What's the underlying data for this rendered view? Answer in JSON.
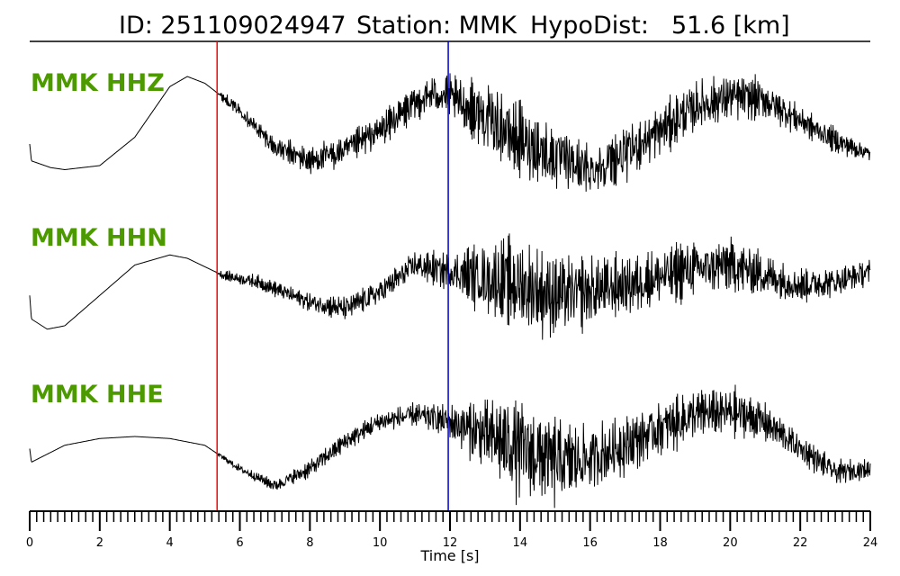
{
  "chart_data": {
    "type": "line",
    "title": {
      "id_text": "ID: 251109024947",
      "station_text": "Station: MMK",
      "hypodist_text": "HypoDist:",
      "hypodist_value": "51.6 [km]"
    },
    "xlabel": "Time [s]",
    "xlim": [
      0,
      24
    ],
    "x_ticks": [
      "0",
      "2",
      "4",
      "6",
      "8",
      "10",
      "12",
      "14",
      "16",
      "18",
      "20",
      "22",
      "24"
    ],
    "x_minor_step": 0.2,
    "grid": false,
    "p_pick_time": 5.35,
    "s_pick_time": 11.95,
    "colors": {
      "trace": "#000000",
      "p_pick": "#ff0000",
      "s_pick": "#0000cc",
      "label": "#4c9900"
    },
    "series": [
      {
        "name": "MMK HHZ",
        "envelope": [
          [
            0.0,
            -0.4
          ],
          [
            0.05,
            -0.65
          ],
          [
            0.6,
            -0.75
          ],
          [
            1.0,
            -0.78
          ],
          [
            2.0,
            -0.72
          ],
          [
            3.0,
            -0.3
          ],
          [
            4.0,
            0.45
          ],
          [
            4.5,
            0.6
          ],
          [
            5.0,
            0.5
          ],
          [
            6.0,
            0.1
          ],
          [
            7.0,
            -0.45
          ],
          [
            8.0,
            -0.65
          ],
          [
            9.0,
            -0.5
          ],
          [
            10.0,
            -0.2
          ],
          [
            11.0,
            0.2
          ],
          [
            11.5,
            0.35
          ],
          [
            12.0,
            0.3
          ],
          [
            13.0,
            0.0
          ],
          [
            14.0,
            -0.35
          ],
          [
            15.0,
            -0.6
          ],
          [
            16.0,
            -0.8
          ],
          [
            17.0,
            -0.55
          ],
          [
            18.0,
            -0.2
          ],
          [
            19.0,
            0.15
          ],
          [
            20.0,
            0.3
          ],
          [
            21.0,
            0.25
          ],
          [
            22.0,
            -0.05
          ],
          [
            23.0,
            -0.35
          ],
          [
            24.0,
            -0.55
          ]
        ],
        "noise": [
          [
            0,
            0.0
          ],
          [
            5.3,
            0.0
          ],
          [
            5.5,
            0.08
          ],
          [
            8.0,
            0.25
          ],
          [
            11.0,
            0.3
          ],
          [
            12.0,
            0.35
          ],
          [
            13.0,
            0.55
          ],
          [
            14.0,
            0.6
          ],
          [
            15.0,
            0.55
          ],
          [
            16.0,
            0.45
          ],
          [
            20.0,
            0.4
          ],
          [
            22.0,
            0.25
          ],
          [
            24.0,
            0.15
          ]
        ]
      },
      {
        "name": "MMK HHN",
        "envelope": [
          [
            0.0,
            -0.35
          ],
          [
            0.05,
            -0.7
          ],
          [
            0.5,
            -0.85
          ],
          [
            1.0,
            -0.8
          ],
          [
            2.0,
            -0.35
          ],
          [
            3.0,
            0.1
          ],
          [
            4.0,
            0.25
          ],
          [
            4.5,
            0.2
          ],
          [
            5.5,
            -0.05
          ],
          [
            6.5,
            -0.15
          ],
          [
            8.0,
            -0.45
          ],
          [
            9.0,
            -0.55
          ],
          [
            10.0,
            -0.3
          ],
          [
            11.0,
            0.1
          ],
          [
            12.0,
            0.0
          ],
          [
            13.0,
            -0.1
          ],
          [
            14.0,
            -0.2
          ],
          [
            15.0,
            -0.35
          ],
          [
            16.0,
            -0.3
          ],
          [
            17.0,
            -0.2
          ],
          [
            19.0,
            0.05
          ],
          [
            20.0,
            0.1
          ],
          [
            21.0,
            -0.05
          ],
          [
            22.0,
            -0.2
          ],
          [
            23.0,
            -0.15
          ],
          [
            24.0,
            0.0
          ]
        ],
        "noise": [
          [
            0,
            0.0
          ],
          [
            5.3,
            0.0
          ],
          [
            5.5,
            0.08
          ],
          [
            9.0,
            0.2
          ],
          [
            11.0,
            0.25
          ],
          [
            12.0,
            0.3
          ],
          [
            13.0,
            0.6
          ],
          [
            14.0,
            0.75
          ],
          [
            15.0,
            0.65
          ],
          [
            17.0,
            0.5
          ],
          [
            20.0,
            0.45
          ],
          [
            22.0,
            0.3
          ],
          [
            24.0,
            0.2
          ]
        ]
      },
      {
        "name": "MMK HHE",
        "envelope": [
          [
            0.0,
            -0.3
          ],
          [
            0.05,
            -0.5
          ],
          [
            1.0,
            -0.25
          ],
          [
            2.0,
            -0.15
          ],
          [
            3.0,
            -0.12
          ],
          [
            4.0,
            -0.15
          ],
          [
            5.0,
            -0.25
          ],
          [
            6.0,
            -0.6
          ],
          [
            7.0,
            -0.85
          ],
          [
            8.0,
            -0.6
          ],
          [
            9.0,
            -0.2
          ],
          [
            10.0,
            0.1
          ],
          [
            11.0,
            0.2
          ],
          [
            12.0,
            0.1
          ],
          [
            13.0,
            -0.1
          ],
          [
            14.0,
            -0.3
          ],
          [
            15.0,
            -0.5
          ],
          [
            16.0,
            -0.45
          ],
          [
            17.0,
            -0.25
          ],
          [
            18.0,
            0.0
          ],
          [
            19.0,
            0.2
          ],
          [
            20.0,
            0.25
          ],
          [
            21.0,
            0.1
          ],
          [
            22.0,
            -0.3
          ],
          [
            23.0,
            -0.65
          ],
          [
            24.0,
            -0.6
          ]
        ],
        "noise": [
          [
            0,
            0.0
          ],
          [
            5.3,
            0.0
          ],
          [
            5.5,
            0.05
          ],
          [
            8.0,
            0.15
          ],
          [
            11.0,
            0.2
          ],
          [
            12.0,
            0.3
          ],
          [
            13.0,
            0.6
          ],
          [
            14.0,
            0.85
          ],
          [
            15.0,
            0.75
          ],
          [
            16.0,
            0.55
          ],
          [
            18.0,
            0.45
          ],
          [
            20.0,
            0.4
          ],
          [
            22.0,
            0.25
          ],
          [
            24.0,
            0.15
          ]
        ]
      }
    ]
  }
}
